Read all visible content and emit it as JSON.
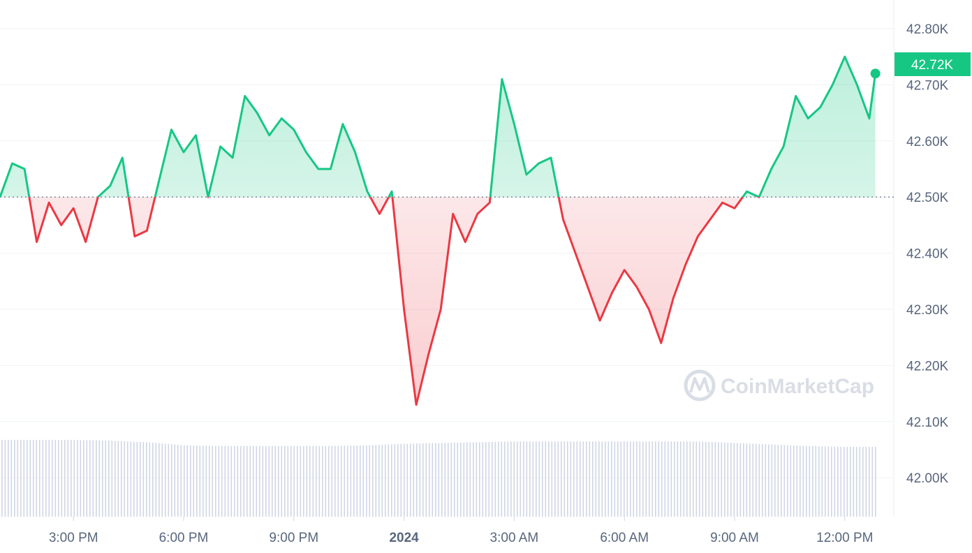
{
  "chart_data": {
    "type": "line",
    "title": "",
    "xlabel": "",
    "ylabel": "",
    "y_ticks": [
      "42.00K",
      "42.10K",
      "42.20K",
      "42.30K",
      "42.40K",
      "42.50K",
      "42.60K",
      "42.70K",
      "42.80K"
    ],
    "y_tick_values": [
      42.0,
      42.1,
      42.2,
      42.3,
      42.4,
      42.5,
      42.6,
      42.7,
      42.8
    ],
    "ylim": [
      41.94,
      42.8
    ],
    "x_ticks": [
      {
        "label": "3:00 PM",
        "time": "15:00"
      },
      {
        "label": "6:00 PM",
        "time": "18:00"
      },
      {
        "label": "9:00 PM",
        "time": "21:00"
      },
      {
        "label": "2024",
        "time": "24:00",
        "bold": true
      },
      {
        "label": "3:00 AM",
        "time": "27:00"
      },
      {
        "label": "6:00 AM",
        "time": "30:00"
      },
      {
        "label": "9:00 AM",
        "time": "33:00"
      },
      {
        "label": "12:00 PM",
        "time": "36:00"
      }
    ],
    "xlim": [
      "13:00",
      "37:20"
    ],
    "reference_line": {
      "value": 42.5,
      "style": "dotted"
    },
    "current_price": {
      "label": "42.72K",
      "value": 42.72,
      "time": "36:50"
    },
    "grid": true,
    "colors": {
      "up": "#16c784",
      "down": "#ea3943",
      "volume": "#cfd6e4",
      "grid": "#eff2f5",
      "reference": "#58667e"
    },
    "series": [
      {
        "times": [
          "13:00",
          "13:20",
          "13:40",
          "14:00",
          "14:20",
          "14:40",
          "15:00",
          "15:20",
          "15:40",
          "16:00",
          "16:20",
          "16:40",
          "17:00",
          "17:20",
          "17:40",
          "18:00",
          "18:20",
          "18:40",
          "19:00",
          "19:20",
          "19:40",
          "20:00",
          "20:20",
          "20:40",
          "21:00",
          "21:20",
          "21:40",
          "22:00",
          "22:20",
          "22:40",
          "23:00",
          "23:20",
          "23:40",
          "24:00",
          "24:20",
          "24:40",
          "25:00",
          "25:20",
          "25:40",
          "26:00",
          "26:20",
          "26:40",
          "27:00",
          "27:20",
          "27:40",
          "28:00",
          "28:20",
          "28:40",
          "29:00",
          "29:20",
          "29:40",
          "30:00",
          "30:20",
          "30:40",
          "31:00",
          "31:20",
          "31:40",
          "32:00",
          "32:20",
          "32:40",
          "33:00",
          "33:20",
          "33:40",
          "34:00",
          "34:20",
          "34:40",
          "35:00",
          "35:20",
          "35:40",
          "36:00",
          "36:20",
          "36:40",
          "36:50"
        ],
        "values": [
          42.5,
          42.56,
          42.55,
          42.42,
          42.49,
          42.45,
          42.48,
          42.42,
          42.5,
          42.52,
          42.57,
          42.43,
          42.44,
          42.53,
          42.62,
          42.58,
          42.61,
          42.5,
          42.59,
          42.57,
          42.68,
          42.65,
          42.61,
          42.64,
          42.62,
          42.58,
          42.55,
          42.55,
          42.63,
          42.58,
          42.51,
          42.47,
          42.51,
          42.3,
          42.13,
          42.22,
          42.3,
          42.47,
          42.42,
          42.47,
          42.49,
          42.71,
          42.63,
          42.54,
          42.56,
          42.57,
          42.46,
          42.4,
          42.34,
          42.28,
          42.33,
          42.37,
          42.34,
          42.3,
          42.24,
          42.32,
          42.38,
          42.43,
          42.46,
          42.49,
          42.48,
          42.51,
          42.5,
          42.55,
          42.59,
          42.68,
          42.64,
          42.66,
          42.7,
          42.75,
          42.7,
          42.64,
          42.72
        ]
      }
    ],
    "volume": {
      "hours": [
        "13:00",
        "14:00",
        "15:00",
        "16:00",
        "17:00",
        "18:00",
        "19:00",
        "20:00",
        "21:00",
        "22:00",
        "23:00",
        "24:00",
        "25:00",
        "26:00",
        "27:00",
        "28:00",
        "29:00",
        "30:00",
        "31:00",
        "32:00",
        "33:00",
        "34:00",
        "35:00",
        "36:00"
      ],
      "relative": [
        1.0,
        1.0,
        1.0,
        0.99,
        0.97,
        0.93,
        0.92,
        0.92,
        0.92,
        0.92,
        0.93,
        0.95,
        0.96,
        0.97,
        0.98,
        0.98,
        0.98,
        0.98,
        0.98,
        0.98,
        0.96,
        0.94,
        0.92,
        0.91
      ]
    }
  },
  "watermark": "CoinMarketCap"
}
